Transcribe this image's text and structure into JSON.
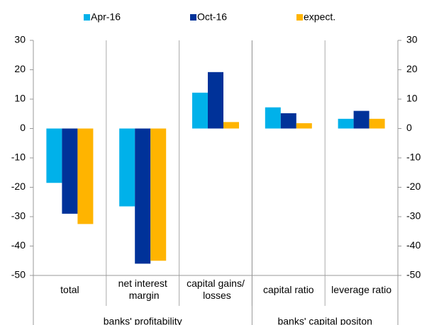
{
  "chart_data": {
    "type": "bar",
    "categories": [
      "total",
      "net interest margin",
      "capital gains/ losses",
      "capital ratio",
      "leverage ratio"
    ],
    "groups": [
      {
        "name": "banks' profitability",
        "size": 3
      },
      {
        "name": "banks' capital positon",
        "size": 2
      }
    ],
    "series": [
      {
        "name": "Apr-16",
        "color": "#00b1ea",
        "values": [
          -18.5,
          -26.5,
          12.2,
          7.2,
          3.3
        ]
      },
      {
        "name": "Oct-16",
        "color": "#003299",
        "values": [
          -29,
          -46,
          19.2,
          5.2,
          6
        ]
      },
      {
        "name": "expect.",
        "color": "#ffb400",
        "values": [
          -32.5,
          -45,
          2.2,
          1.8,
          3.3
        ]
      }
    ],
    "ylim": [
      -50,
      30
    ],
    "yticks": [
      -50,
      -40,
      -30,
      -20,
      -10,
      0,
      10,
      20,
      30
    ],
    "y2lim": [
      -50,
      30
    ],
    "y2ticks": [
      -50,
      -40,
      -30,
      -20,
      -10,
      0,
      10,
      20,
      30
    ],
    "grid": true,
    "legend": "top"
  }
}
